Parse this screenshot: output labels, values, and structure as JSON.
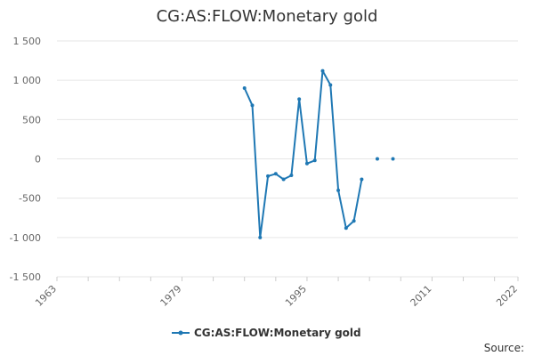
{
  "chart_data": {
    "type": "line",
    "title": "CG:AS:FLOW:Monetary gold",
    "xlabel": "",
    "ylabel": "",
    "xlim": [
      1963,
      2022
    ],
    "ylim": [
      -1500,
      1500
    ],
    "x_ticks": [
      "1963",
      "1979",
      "1995",
      "2011",
      "2022"
    ],
    "y_ticks": [
      "1 500",
      "1 000",
      "500",
      "0",
      "-500",
      "-1 000",
      "-1 500"
    ],
    "y_tick_values": [
      1500,
      1000,
      500,
      0,
      -500,
      -1000,
      -1500
    ],
    "x_tick_values": [
      1963,
      1979,
      1995,
      2011,
      2022
    ],
    "grid": true,
    "legend_position": "bottom-center",
    "series": [
      {
        "name": "CG:AS:FLOW:Monetary gold",
        "color": "#1f78b4",
        "x": [
          1987,
          1988,
          1989,
          1990,
          1991,
          1992,
          1993,
          1994,
          1995,
          1996,
          1997,
          1998,
          1999,
          2000,
          2001,
          2002,
          2004,
          2006
        ],
        "values": [
          900,
          680,
          -1000,
          -220,
          -190,
          -260,
          -210,
          760,
          -60,
          -20,
          1120,
          940,
          -400,
          -880,
          -790,
          -260,
          0,
          0
        ]
      }
    ]
  },
  "source_label": "Source:",
  "colors": {
    "series": "#1f78b4",
    "grid": "#e6e6e6",
    "axis": "#cccccc"
  }
}
